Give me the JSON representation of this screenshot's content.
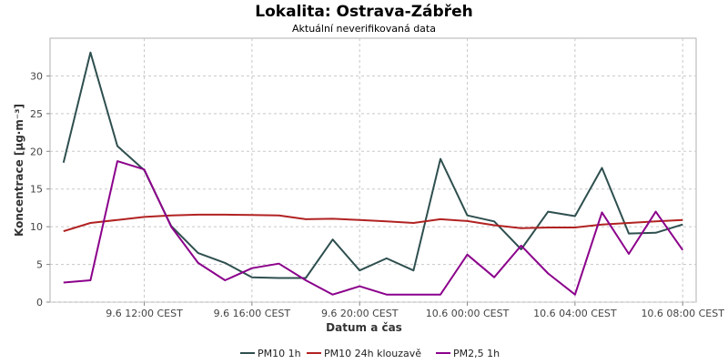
{
  "chart_data": {
    "type": "line",
    "title": "Lokalita: Ostrava-Zábřeh",
    "subtitle": "Aktuální neverifikovaná data",
    "xlabel": "Datum a čas",
    "ylabel": "Koncentrace [µg·m⁻³]",
    "ylim": [
      0,
      35
    ],
    "yticks": [
      0,
      5,
      10,
      15,
      20,
      25,
      30
    ],
    "x": [
      "9.6 09:00",
      "9.6 10:00",
      "9.6 11:00",
      "9.6 12:00",
      "9.6 13:00",
      "9.6 14:00",
      "9.6 15:00",
      "9.6 16:00",
      "9.6 17:00",
      "9.6 18:00",
      "9.6 19:00",
      "9.6 20:00",
      "9.6 21:00",
      "9.6 22:00",
      "9.6 23:00",
      "10.6 00:00",
      "10.6 01:00",
      "10.6 02:00",
      "10.6 03:00",
      "10.6 04:00",
      "10.6 05:00",
      "10.6 06:00",
      "10.6 07:00",
      "10.6 08:00"
    ],
    "xlim": [
      "9.6 08:30",
      "10.6 08:30"
    ],
    "xticks": [
      {
        "x": "9.6 12:00",
        "label": "9.6 12:00 CEST"
      },
      {
        "x": "9.6 16:00",
        "label": "9.6 16:00 CEST"
      },
      {
        "x": "9.6 20:00",
        "label": "9.6 20:00 CEST"
      },
      {
        "x": "10.6 00:00",
        "label": "10.6 00:00 CEST"
      },
      {
        "x": "10.6 04:00",
        "label": "10.6 04:00 CEST"
      },
      {
        "x": "10.6 08:00",
        "label": "10.6 08:00 CEST"
      }
    ],
    "grid": true,
    "legend_position": "bottom",
    "series": [
      {
        "name": "PM10 1h",
        "color": "#2f4f4f",
        "values": [
          18.5,
          33.1,
          20.7,
          17.5,
          10.1,
          6.5,
          5.2,
          3.3,
          3.2,
          3.2,
          8.3,
          4.2,
          5.8,
          4.2,
          19.0,
          11.5,
          10.7,
          7.0,
          12.0,
          11.4,
          17.8,
          9.1,
          9.2,
          10.3
        ]
      },
      {
        "name": "PM10 24h klouzavě",
        "color": "#b22222",
        "values": [
          9.4,
          10.5,
          10.9,
          11.3,
          11.5,
          11.6,
          11.6,
          11.55,
          11.5,
          11.0,
          11.05,
          10.9,
          10.7,
          10.5,
          11.0,
          10.75,
          10.2,
          9.8,
          9.9,
          9.9,
          10.3,
          10.5,
          10.7,
          10.9
        ]
      },
      {
        "name": "PM2,5 1h",
        "color": "#8b008b",
        "values": [
          2.6,
          2.9,
          18.7,
          17.6,
          10.0,
          5.2,
          2.9,
          4.5,
          5.1,
          2.9,
          1.0,
          2.1,
          1.0,
          1.0,
          1.0,
          6.3,
          3.3,
          7.5,
          3.8,
          1.0,
          11.9,
          6.4,
          12.0,
          6.9
        ]
      }
    ]
  }
}
